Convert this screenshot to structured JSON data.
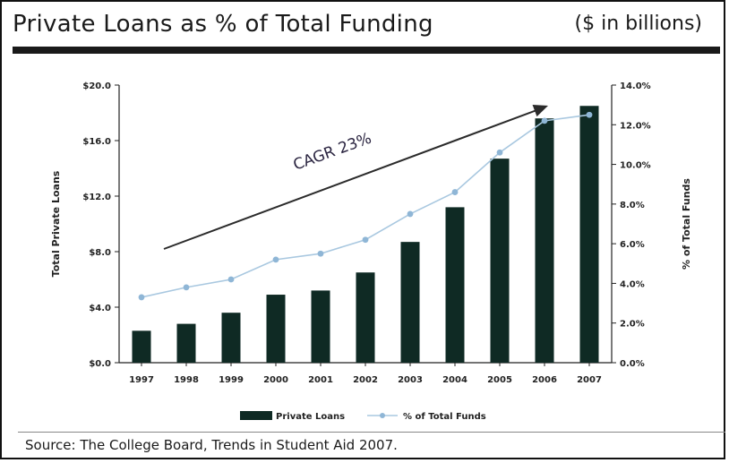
{
  "header": {
    "title": "Private Loans as % of Total Funding",
    "units": "($ in billions)"
  },
  "footer": {
    "source": "Source: The College Board, Trends in Student Aid 2007."
  },
  "colors": {
    "bar": "#0f2a24",
    "line": "#a9c8e0",
    "marker": "#8fb6d6",
    "arrow": "#2b2b2b"
  },
  "chart_data": {
    "type": "bar",
    "categories": [
      "1997",
      "1998",
      "1999",
      "2000",
      "2001",
      "2002",
      "2003",
      "2004",
      "2005",
      "2006",
      "2007"
    ],
    "series": [
      {
        "name": "Private Loans",
        "kind": "bar",
        "axis": "left",
        "values": [
          2.3,
          2.8,
          3.6,
          4.9,
          5.2,
          6.5,
          8.7,
          11.2,
          14.7,
          17.6,
          18.5
        ]
      },
      {
        "name": "% of Total Funds",
        "kind": "line",
        "axis": "right",
        "values": [
          3.3,
          3.8,
          4.2,
          5.2,
          5.5,
          6.2,
          7.5,
          8.6,
          10.6,
          12.2,
          12.5
        ]
      }
    ],
    "ylabel": "Total Private Loans",
    "y2label": "% of Total Funds",
    "ylim": [
      0,
      20
    ],
    "y2lim": [
      0,
      14
    ],
    "yticks": [
      "$0.0",
      "$4.0",
      "$8.0",
      "$12.0",
      "$16.0",
      "$20.0"
    ],
    "y2ticks": [
      "0.0%",
      "2.0%",
      "4.0%",
      "6.0%",
      "8.0%",
      "10.0%",
      "12.0%",
      "14.0%"
    ],
    "annotation": "CAGR 23%",
    "legend": {
      "placement": "bottom-center"
    },
    "grid": false
  }
}
